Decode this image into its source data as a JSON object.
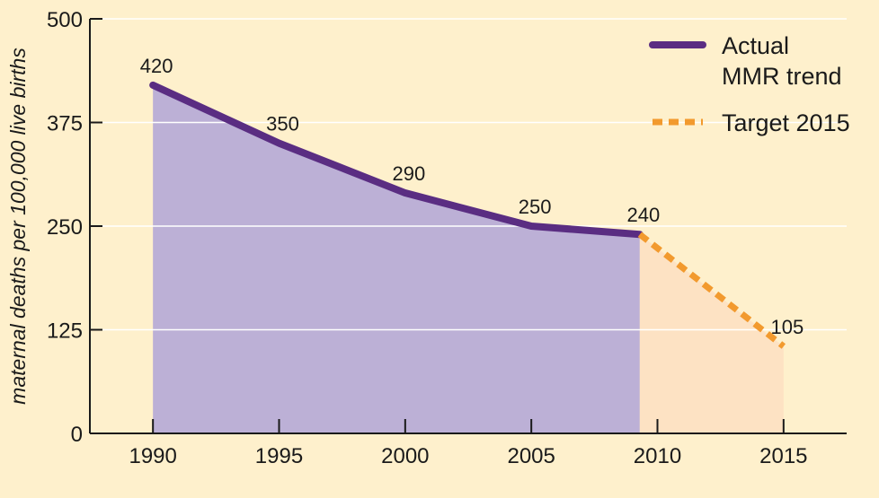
{
  "chart_data": {
    "type": "line",
    "title": "",
    "xlabel": "",
    "ylabel": "maternal deaths per 100,000 live births",
    "xlim": [
      1987.5,
      2017.5
    ],
    "ylim": [
      0,
      500
    ],
    "x_ticks": [
      "1990",
      "1995",
      "2000",
      "2005",
      "2010",
      "2015"
    ],
    "y_ticks": [
      "0",
      "125",
      "250",
      "375",
      "500"
    ],
    "grid": "horizontal",
    "series": [
      {
        "name": "Actual MMR trend",
        "style": "solid",
        "color": "#5a2d82",
        "fill": "#bcb0d6",
        "points": [
          {
            "x": 1990,
            "y": 420,
            "label": "420"
          },
          {
            "x": 1995,
            "y": 350,
            "label": "350"
          },
          {
            "x": 2000,
            "y": 290,
            "label": "290"
          },
          {
            "x": 2005,
            "y": 250,
            "label": "250"
          },
          {
            "x": 2009.3,
            "y": 240,
            "label": "240"
          }
        ]
      },
      {
        "name": "Target 2015",
        "style": "dashed",
        "color": "#f29a2e",
        "fill": "#fde2c3",
        "points": [
          {
            "x": 2009.3,
            "y": 240,
            "label": ""
          },
          {
            "x": 2015,
            "y": 105,
            "label": "105"
          }
        ]
      }
    ],
    "legend": {
      "position": "top-right",
      "entries": [
        {
          "lines": [
            "Actual",
            "MMR trend"
          ],
          "series": 0
        },
        {
          "lines": [
            "Target 2015"
          ],
          "series": 1
        }
      ]
    }
  }
}
